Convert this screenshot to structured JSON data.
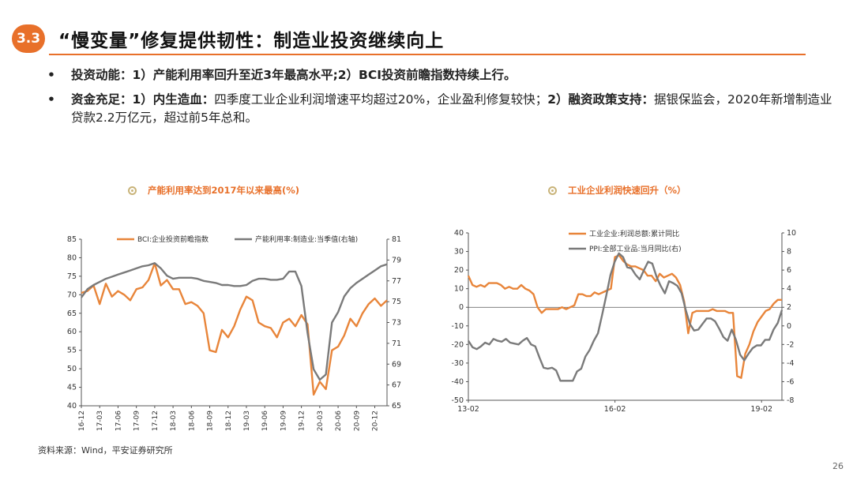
{
  "header": {
    "section": "3.3",
    "title": "“慢变量”修复提供韧性：制造业投资继续向上"
  },
  "bullets": [
    {
      "symbol": "•",
      "lead": "投资动能：1）产能利用率回升至近3年最高水平;2）BCI投资前瞻指数持续上行。",
      "rest": ""
    },
    {
      "symbol": "•",
      "lead": "资金充足：1）内生造血：",
      "mid": "四季度工业企业利润增速平均超过20%，企业盈利修复较快；",
      "lead2": "2）融资政策支持：",
      "rest": "据银保监会，2020年新增制造业贷款2.2万亿元，超过前5年总和。"
    }
  ],
  "chart_data": [
    {
      "type": "line",
      "title": "产能利用率达到2017年以来最高(%)",
      "x": [
        "16-12",
        "17-01",
        "17-02",
        "17-03",
        "17-04",
        "17-05",
        "17-06",
        "17-07",
        "17-08",
        "17-09",
        "17-10",
        "17-11",
        "17-12",
        "18-01",
        "18-02",
        "18-03",
        "18-04",
        "18-05",
        "18-06",
        "18-07",
        "18-08",
        "18-09",
        "18-10",
        "18-11",
        "18-12",
        "19-01",
        "19-02",
        "19-03",
        "19-04",
        "19-05",
        "19-06",
        "19-07",
        "19-08",
        "19-09",
        "19-10",
        "19-11",
        "19-12",
        "20-01",
        "20-02",
        "20-03",
        "20-04",
        "20-05",
        "20-06",
        "20-07",
        "20-08",
        "20-09",
        "20-10",
        "20-11",
        "20-12",
        "21-01",
        "21-02"
      ],
      "x_ticks": [
        "16-12",
        "17-03",
        "17-06",
        "17-09",
        "17-12",
        "18-03",
        "18-06",
        "18-09",
        "18-12",
        "19-03",
        "19-06",
        "19-09",
        "19-12",
        "20-03",
        "20-06",
        "20-09",
        "20-12"
      ],
      "left_axis": {
        "ylim": [
          40,
          85
        ],
        "ticks": [
          "40",
          "45",
          "50",
          "55",
          "60",
          "65",
          "70",
          "75",
          "80",
          "85"
        ]
      },
      "right_axis": {
        "ylim": [
          65,
          81
        ],
        "ticks": [
          "65",
          "67",
          "69",
          "71",
          "73",
          "75",
          "77",
          "79",
          "81"
        ]
      },
      "series": [
        {
          "name": "BCI:企业投资前瞻指数",
          "axis": "left",
          "color": "#e8853a",
          "values": [
            70.5,
            71,
            72.5,
            67.5,
            73,
            69.5,
            71,
            70,
            68.5,
            71.5,
            72,
            74,
            78.5,
            72.5,
            74,
            71.5,
            71.5,
            67.5,
            68,
            67,
            65,
            55,
            54.5,
            60.5,
            58.5,
            61.5,
            66,
            69.5,
            68.5,
            62.5,
            61.5,
            61,
            58.5,
            62.5,
            63.5,
            61.5,
            64.5,
            62,
            43,
            46.5,
            44.5,
            55,
            56,
            59,
            63.5,
            61.5,
            65,
            67.5,
            69,
            67,
            68.5
          ]
        },
        {
          "name": "产能利用率:制造业:当季值(右轴)",
          "axis": "right",
          "color": "#7a7a7a",
          "values": [
            75.4,
            76.2,
            76.6,
            76.9,
            77.2,
            77.4,
            77.6,
            77.8,
            78.0,
            78.2,
            78.4,
            78.5,
            78.7,
            78.2,
            77.5,
            77.2,
            77.3,
            77.3,
            77.3,
            77.2,
            77.0,
            76.9,
            76.8,
            76.6,
            76.6,
            76.5,
            76.5,
            76.6,
            77.0,
            77.2,
            77.2,
            77.1,
            77.1,
            77.2,
            77.9,
            77.9,
            76.5,
            72.0,
            68.5,
            67.5,
            68.0,
            73.0,
            74.0,
            75.5,
            76.3,
            76.8,
            77.2,
            77.6,
            78.0,
            78.4,
            78.6
          ]
        }
      ]
    },
    {
      "type": "line",
      "title": "工业企业利润快速回升（%）",
      "x_ticks": [
        "13-02",
        "16-02",
        "19-02"
      ],
      "left_axis": {
        "ylim": [
          -50,
          40
        ],
        "ticks": [
          "-50",
          "-40",
          "-30",
          "-20",
          "-10",
          "0",
          "10",
          "20",
          "30",
          "40"
        ]
      },
      "right_axis": {
        "ylim": [
          -8,
          10
        ],
        "ticks": [
          "-8",
          "-6",
          "-4",
          "-2",
          "0",
          "2",
          "4",
          "6",
          "8",
          "10"
        ]
      },
      "series": [
        {
          "name": "工业企业:利润总额:累计同比",
          "axis": "left",
          "color": "#e8853a",
          "values": [
            17,
            12,
            11,
            12,
            11,
            13,
            13,
            13,
            12,
            10,
            11,
            10,
            10,
            12,
            10,
            9,
            7,
            0,
            -3,
            -1,
            -1,
            -1,
            -1,
            0,
            -1,
            0,
            1,
            7,
            7,
            6,
            6,
            8,
            7,
            8,
            9,
            10,
            27,
            28,
            25,
            23,
            22,
            22,
            21,
            20,
            17,
            17,
            14,
            18,
            16,
            17,
            18,
            16,
            12,
            3,
            -14,
            -3,
            -2,
            -2,
            -2,
            -2,
            -1,
            -2,
            -2,
            -2,
            -3,
            -3,
            -37,
            -38,
            -25,
            -20,
            -13,
            -8,
            -5,
            -2,
            -1,
            2,
            4,
            4
          ]
        },
        {
          "name": "PPI:全部工业品:当月同比(右)",
          "axis": "right",
          "color": "#7a7a7a",
          "values": [
            -1.6,
            -2.3,
            -2.5,
            -2.2,
            -1.8,
            -2.0,
            -1.4,
            -1.6,
            -1.7,
            -1.4,
            -1.8,
            -1.9,
            -2.0,
            -1.6,
            -1.3,
            -2.0,
            -2.2,
            -3.4,
            -4.5,
            -4.6,
            -4.5,
            -4.8,
            -5.9,
            -5.9,
            -5.9,
            -5.9,
            -4.9,
            -4.6,
            -3.3,
            -2.6,
            -1.6,
            -0.8,
            1.2,
            3.3,
            5.5,
            6.9,
            7.8,
            7.4,
            6.3,
            6.2,
            5.5,
            5.0,
            6.0,
            6.9,
            6.7,
            5.3,
            4.3,
            3.5,
            4.8,
            4.6,
            4.3,
            3.5,
            1.7,
            0.2,
            -0.5,
            -0.4,
            0.2,
            0.8,
            0.8,
            0.5,
            -0.3,
            -1.2,
            -1.6,
            -0.4,
            -1.5,
            -3.1,
            -3.7,
            -3.0,
            -2.4,
            -2.1,
            -2.1,
            -1.5,
            -1.5,
            -0.4,
            0.3,
            1.7
          ]
        }
      ]
    }
  ],
  "footer": {
    "source": "资料来源：Wind，平安证券研究所",
    "page": "26"
  }
}
